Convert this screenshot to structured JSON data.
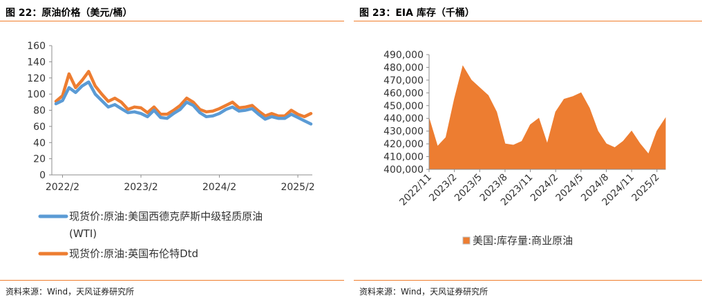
{
  "figures": [
    {
      "title": "图 22：原油价格（美元/桶）",
      "source": "资料来源：Wind，天风证券研究所"
    },
    {
      "title": "图 23：EIA 库存（千桶）",
      "source": "资料来源：Wind，天风证券研究所"
    }
  ],
  "colors": {
    "accent_rule": "#f07d2b",
    "wti": "#5b9bd5",
    "brent": "#ed7d31",
    "inventory": "#ed7d31"
  },
  "chart_data": [
    {
      "type": "line",
      "title": "",
      "xlabel": "",
      "ylabel": "",
      "ylim": [
        0,
        160
      ],
      "yticks": [
        "0",
        "20",
        "40",
        "60",
        "80",
        "100",
        "120",
        "140",
        "160"
      ],
      "xticks": [
        "2022/2",
        "2023/2",
        "2024/2",
        "2025/2"
      ],
      "grid": false,
      "legend_position": "bottom",
      "x": [
        "2022/1",
        "2022/2",
        "2022/3",
        "2022/4",
        "2022/5",
        "2022/6",
        "2022/7",
        "2022/8",
        "2022/9",
        "2022/10",
        "2022/11",
        "2022/12",
        "2023/1",
        "2023/2",
        "2023/3",
        "2023/4",
        "2023/5",
        "2023/6",
        "2023/7",
        "2023/8",
        "2023/9",
        "2023/10",
        "2023/11",
        "2023/12",
        "2024/1",
        "2024/2",
        "2024/3",
        "2024/4",
        "2024/5",
        "2024/6",
        "2024/7",
        "2024/8",
        "2024/9",
        "2024/10",
        "2024/11",
        "2024/12",
        "2025/1",
        "2025/2",
        "2025/3",
        "2025/4"
      ],
      "series": [
        {
          "name": "现货价:原油:美国西德克萨斯中级轻质原油",
          "name_line2": "(WTI)",
          "values": [
            88,
            92,
            108,
            102,
            110,
            115,
            100,
            92,
            84,
            87,
            82,
            77,
            78,
            76,
            72,
            80,
            71,
            70,
            76,
            81,
            90,
            86,
            77,
            72,
            73,
            76,
            81,
            84,
            79,
            80,
            82,
            75,
            69,
            72,
            70,
            70,
            75,
            71,
            67,
            63
          ]
        },
        {
          "name": "现货价:原油:英国布伦特Dtd",
          "values": [
            91,
            98,
            125,
            108,
            117,
            128,
            110,
            100,
            91,
            95,
            90,
            81,
            84,
            83,
            77,
            84,
            75,
            75,
            80,
            86,
            95,
            90,
            81,
            78,
            79,
            82,
            86,
            90,
            83,
            84,
            86,
            79,
            73,
            76,
            73,
            73,
            80,
            75,
            72,
            76
          ]
        }
      ]
    },
    {
      "type": "area",
      "title": "",
      "xlabel": "",
      "ylabel": "",
      "ylim": [
        400000,
        490000
      ],
      "yticks": [
        "400,000",
        "410,000",
        "420,000",
        "430,000",
        "440,000",
        "450,000",
        "460,000",
        "470,000",
        "480,000",
        "490,000"
      ],
      "xticks": [
        "2022/11",
        "2023/2",
        "2023/5",
        "2023/8",
        "2023/11",
        "2024/2",
        "2024/5",
        "2024/8",
        "2024/11",
        "2025/2"
      ],
      "grid": false,
      "legend_position": "bottom",
      "x": [
        "2022/11",
        "2022/12",
        "2023/1",
        "2023/2",
        "2023/3",
        "2023/4",
        "2023/5",
        "2023/6",
        "2023/7",
        "2023/8",
        "2023/9",
        "2023/10",
        "2023/11",
        "2023/12",
        "2024/1",
        "2024/2",
        "2024/3",
        "2024/4",
        "2024/5",
        "2024/6",
        "2024/7",
        "2024/8",
        "2024/9",
        "2024/10",
        "2024/11",
        "2024/12",
        "2025/1",
        "2025/2",
        "2025/3"
      ],
      "series": [
        {
          "name": "美国:库存量:商业原油",
          "values": [
            440000,
            418000,
            425000,
            455000,
            481000,
            470000,
            464000,
            458000,
            445000,
            420000,
            419000,
            422000,
            435000,
            440000,
            420000,
            445000,
            455000,
            457000,
            460000,
            448000,
            430000,
            420000,
            417000,
            422000,
            430000,
            420000,
            412000,
            430000,
            440000
          ]
        }
      ]
    }
  ]
}
